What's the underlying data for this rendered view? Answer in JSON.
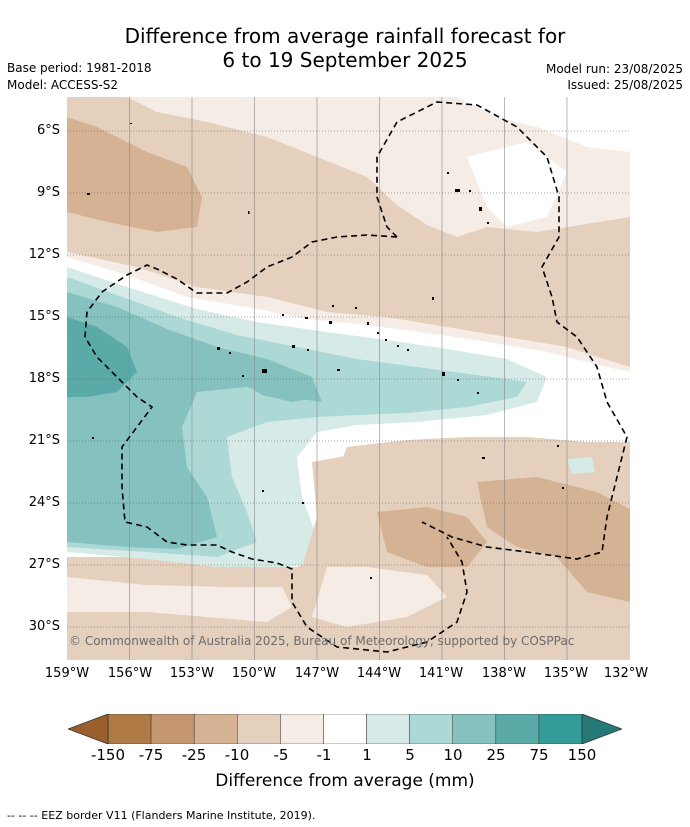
{
  "title": {
    "line1": "Difference from average rainfall forecast for",
    "line2": "6 to 19 September 2025"
  },
  "meta": {
    "base_period": "Base period: 1981-2018",
    "model": "Model: ACCESS-S2",
    "model_run": "Model run: 23/08/2025",
    "issued": "Issued: 25/08/2025"
  },
  "map": {
    "copyright": "© Commonwealth of Australia 2025, Bureau of Meteorology, supported by COSPPac",
    "lat_labels": [
      "6°S",
      "9°S",
      "12°S",
      "15°S",
      "18°S",
      "21°S",
      "24°S",
      "27°S",
      "30°S"
    ],
    "lon_labels": [
      "159°W",
      "156°W",
      "153°W",
      "150°W",
      "147°W",
      "144°W",
      "141°W",
      "138°W",
      "135°W",
      "132°W"
    ]
  },
  "colorbar": {
    "ticks": [
      "-150",
      "-75",
      "-25",
      "-10",
      "-5",
      "-1",
      "1",
      "5",
      "10",
      "25",
      "75",
      "150"
    ],
    "colors": [
      "#b07a45",
      "#c59770",
      "#d4b293",
      "#e4d0bd",
      "#f5ece6",
      "#ffffff",
      "#d6ebe8",
      "#acd8d6",
      "#84c1bf",
      "#5aaaa8",
      "#339b98"
    ],
    "under_color": "#9a5f2c",
    "over_color": "#257a78",
    "label": "Difference from average (mm)"
  },
  "footer": "-- -- -- EEZ border V11 (Flanders Marine Institute, 2019)."
}
